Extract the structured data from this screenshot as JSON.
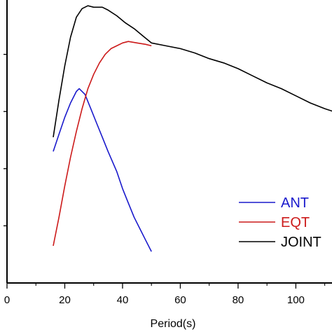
{
  "chart_data": {
    "type": "line",
    "title": "",
    "xlabel": "Period(s)",
    "ylabel": "",
    "xlim": [
      0,
      113
    ],
    "ylim": [
      0,
      1
    ],
    "xticks": [
      0,
      20,
      40,
      60,
      80,
      100
    ],
    "x_minor_step": 10,
    "yticks_unlabeled": [
      0.2,
      0.4,
      0.6,
      0.8
    ],
    "grid": false,
    "legend": "right",
    "series": [
      {
        "name": "ANT",
        "color": "#1a1acc",
        "points": [
          [
            16,
            0.46
          ],
          [
            18,
            0.52
          ],
          [
            20,
            0.58
          ],
          [
            22,
            0.63
          ],
          [
            24,
            0.67
          ],
          [
            25,
            0.68
          ],
          [
            27,
            0.66
          ],
          [
            29,
            0.61
          ],
          [
            31,
            0.56
          ],
          [
            33,
            0.51
          ],
          [
            35,
            0.46
          ],
          [
            38,
            0.39
          ],
          [
            40,
            0.33
          ],
          [
            42,
            0.28
          ],
          [
            44,
            0.23
          ],
          [
            46,
            0.19
          ],
          [
            48,
            0.15
          ],
          [
            50,
            0.11
          ]
        ]
      },
      {
        "name": "EQT",
        "color": "#cc1a1a",
        "points": [
          [
            16,
            0.13
          ],
          [
            18,
            0.23
          ],
          [
            20,
            0.34
          ],
          [
            22,
            0.44
          ],
          [
            24,
            0.53
          ],
          [
            26,
            0.61
          ],
          [
            28,
            0.68
          ],
          [
            30,
            0.73
          ],
          [
            32,
            0.77
          ],
          [
            34,
            0.8
          ],
          [
            36,
            0.82
          ],
          [
            38,
            0.83
          ],
          [
            40,
            0.84
          ],
          [
            42,
            0.845
          ],
          [
            45,
            0.84
          ],
          [
            48,
            0.835
          ],
          [
            50,
            0.83
          ]
        ]
      },
      {
        "name": "JOINT",
        "color": "#000000",
        "points": [
          [
            16,
            0.51
          ],
          [
            18,
            0.64
          ],
          [
            20,
            0.76
          ],
          [
            22,
            0.86
          ],
          [
            24,
            0.93
          ],
          [
            26,
            0.96
          ],
          [
            28,
            0.97
          ],
          [
            30,
            0.965
          ],
          [
            33,
            0.965
          ],
          [
            35,
            0.955
          ],
          [
            38,
            0.935
          ],
          [
            41,
            0.91
          ],
          [
            44,
            0.89
          ],
          [
            47,
            0.865
          ],
          [
            50,
            0.84
          ],
          [
            55,
            0.83
          ],
          [
            60,
            0.82
          ],
          [
            65,
            0.805
          ],
          [
            70,
            0.785
          ],
          [
            75,
            0.77
          ],
          [
            80,
            0.75
          ],
          [
            85,
            0.725
          ],
          [
            90,
            0.7
          ],
          [
            95,
            0.68
          ],
          [
            100,
            0.655
          ],
          [
            105,
            0.63
          ],
          [
            110,
            0.61
          ],
          [
            113,
            0.6
          ]
        ]
      }
    ]
  }
}
